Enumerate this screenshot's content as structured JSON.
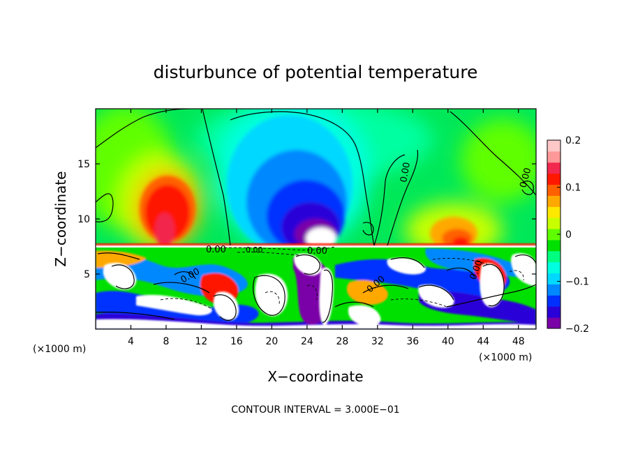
{
  "chart_data": {
    "type": "heatmap",
    "title": "disturbunce of potential temperature",
    "xlabel": "X−coordinate",
    "ylabel": "Z−coordinate",
    "x_unit_left": "(×1000 m)",
    "x_unit_right": "(×1000 m)",
    "xlim": [
      0,
      50
    ],
    "ylim": [
      0,
      20
    ],
    "x_ticks": [
      4,
      8,
      12,
      16,
      20,
      24,
      28,
      32,
      36,
      40,
      44,
      48
    ],
    "x_tick_labels": [
      "4",
      "8",
      "12",
      "16",
      "20",
      "24",
      "28",
      "32",
      "36",
      "40",
      "44",
      "48"
    ],
    "y_ticks": [
      5,
      10,
      15
    ],
    "y_tick_labels": [
      "5",
      "10",
      "15"
    ],
    "colorbar": {
      "range": [
        -0.2,
        0.2
      ],
      "ticks": [
        0.2,
        0.1,
        0,
        -0.1,
        -0.2
      ],
      "tick_labels": [
        "0.2",
        "0.1",
        "0",
        "−0.1",
        "−0.2"
      ],
      "colors": [
        "#7a00a8",
        "#2a00d8",
        "#0030ff",
        "#0088ff",
        "#00d8ff",
        "#00ffe0",
        "#00ff80",
        "#00e000",
        "#60ff00",
        "#c8ff00",
        "#ffe800",
        "#ffa800",
        "#ff6000",
        "#ff1800",
        "#f2284e",
        "#ff9898",
        "#ffc8c8"
      ]
    },
    "contour_labels": [
      "0.00",
      "0.00",
      "0.00",
      "0.00",
      "0.00",
      "0.00",
      "0.00",
      "0.00"
    ],
    "anomalies": [
      {
        "name": "warm lobe",
        "x": 8.5,
        "z": 11.5,
        "value": 0.14
      },
      {
        "name": "cold lobe",
        "x": 24,
        "z": 11.5,
        "value": -0.17
      },
      {
        "name": "warm lobe east",
        "x": 41,
        "z": 9.5,
        "value": 0.1
      }
    ],
    "footer": "CONTOUR INTERVAL = 3.000E−01"
  }
}
